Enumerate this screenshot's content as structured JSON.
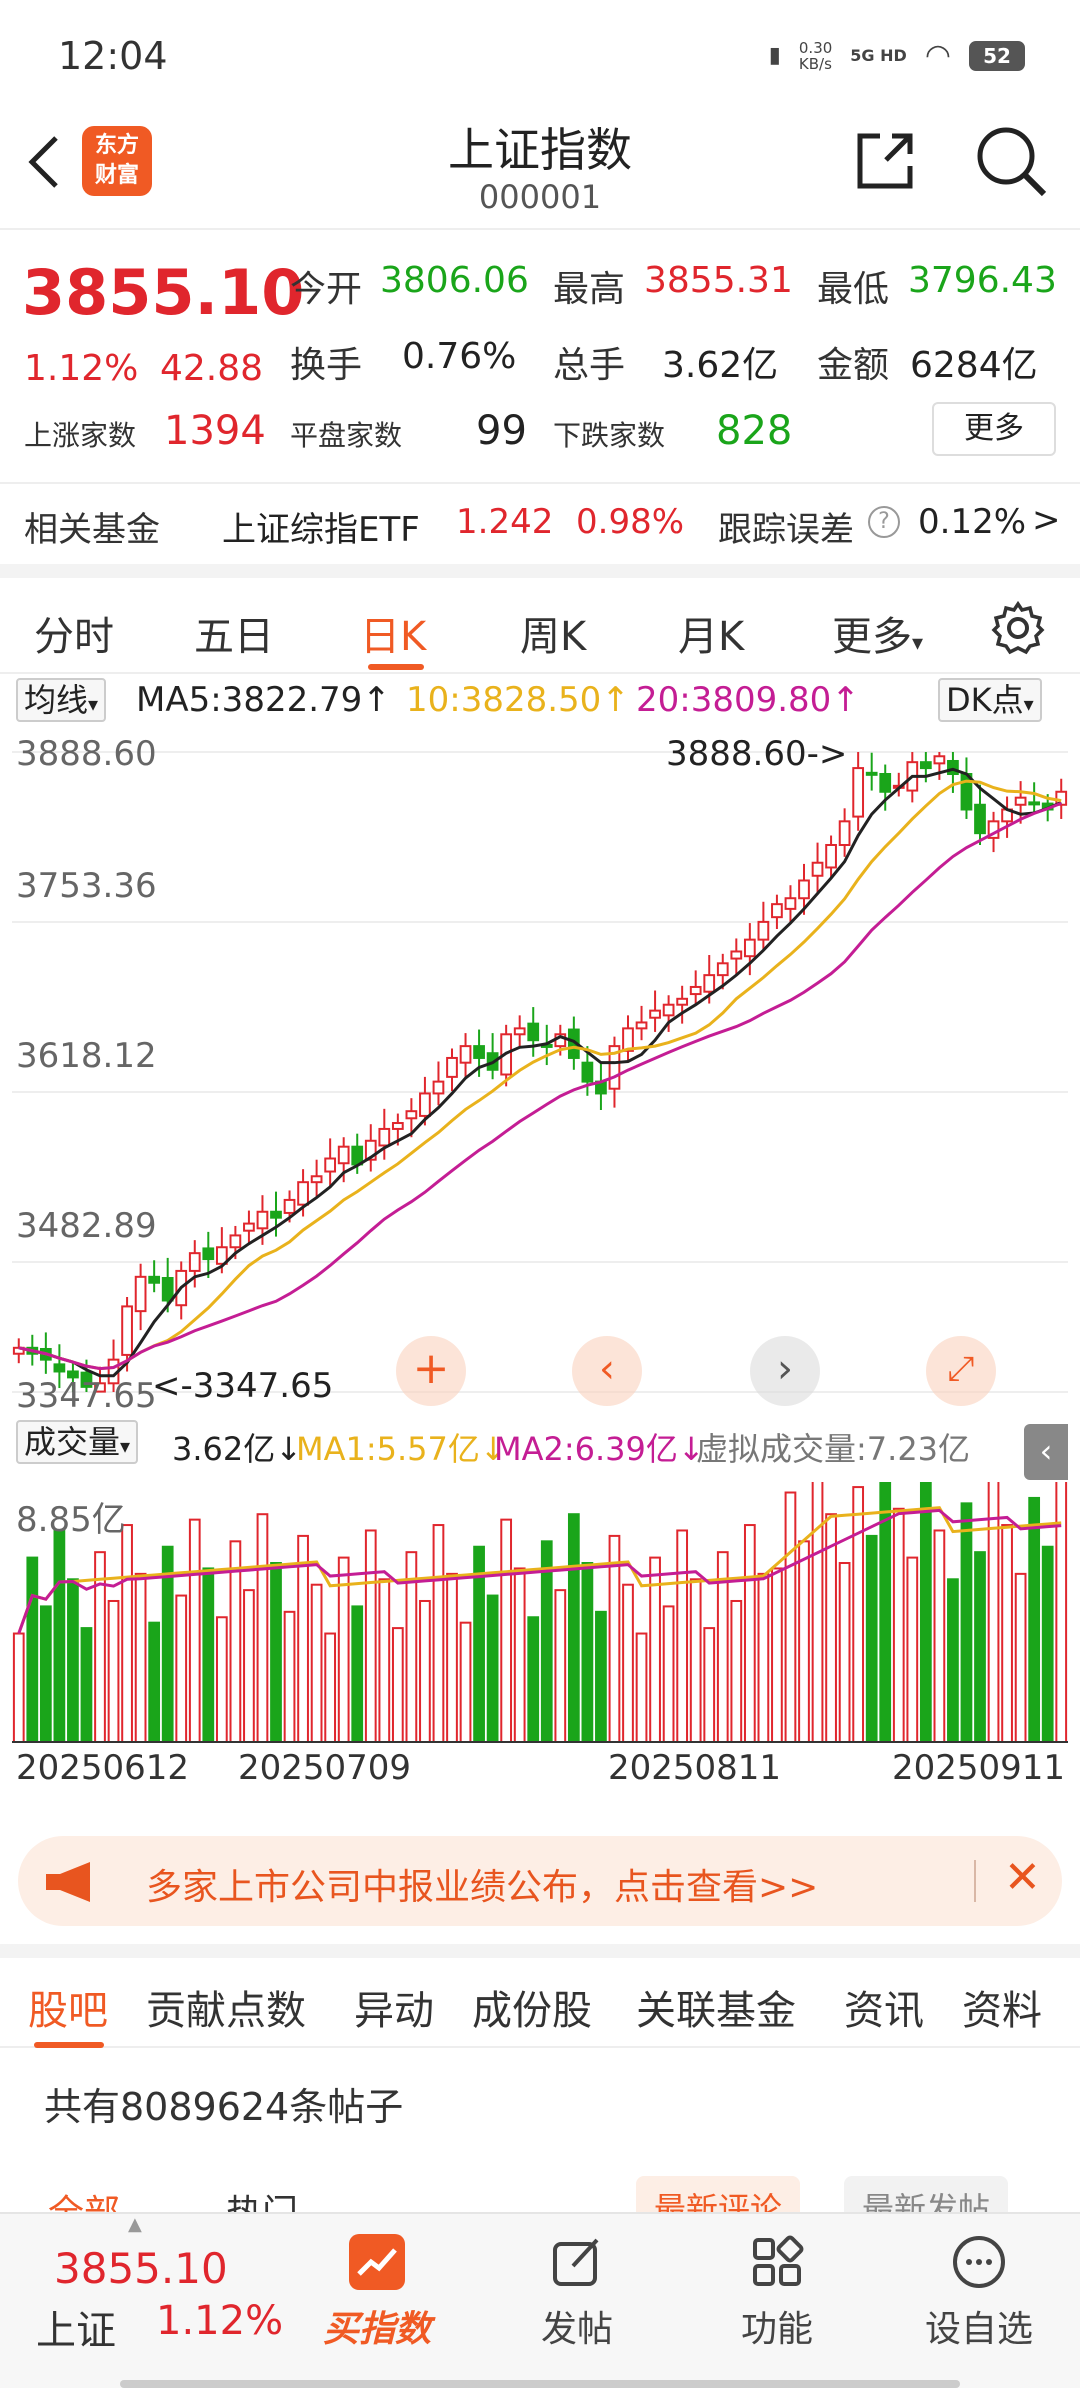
{
  "status": {
    "time": "12:04",
    "net_speed": "0.30\nKB/s",
    "net_type": "5G HD",
    "battery": "52"
  },
  "header": {
    "logo_text": "东方\n财富",
    "title": "上证指数",
    "code": "000001"
  },
  "quote": {
    "price": "3855.10",
    "change_pct": "1.12%",
    "change": "42.88",
    "open_label": "今开",
    "open": "3806.06",
    "high_label": "最高",
    "high": "3855.31",
    "low_label": "最低",
    "low": "3796.43",
    "turnover_label": "换手",
    "turnover": "0.76%",
    "volume_label": "总手",
    "volume": "3.62亿",
    "amount_label": "金额",
    "amount": "6284亿",
    "up_label": "上涨家数",
    "up": "1394",
    "flat_label": "平盘家数",
    "flat": "99",
    "down_label": "下跌家数",
    "down": "828",
    "more": "更多"
  },
  "fund": {
    "label": "相关基金",
    "name": "上证综指ETF",
    "price": "1.242",
    "pct": "0.98%",
    "err_label": "跟踪误差",
    "err": "0.12%",
    "arrow": ">"
  },
  "period_tabs": [
    "分时",
    "五日",
    "日K",
    "周K",
    "月K",
    "更多"
  ],
  "chart": {
    "ma_selector": "均线",
    "ma5": "MA5:3822.79↑",
    "ma10": "10:3828.50↑",
    "ma20": "20:3809.80↑",
    "dk": "DK点",
    "price_ticks": [
      "3888.60",
      "3753.36",
      "3618.12",
      "3482.89",
      "3347.65"
    ],
    "high_marker": "3888.60->",
    "low_marker": "<-3347.65",
    "vol_selector": "成交量",
    "vol_now": "3.62亿↓",
    "vol_ma1": "MA1:5.57亿↓",
    "vol_ma2": "MA2:6.39亿↓",
    "vol_virtual": "虚拟成交量:7.23亿",
    "vol_tick": "8.85亿",
    "dates": [
      "20250612",
      "20250709",
      "20250811",
      "20250911"
    ]
  },
  "chart_data": {
    "type": "candlestick",
    "ylim": [
      3347.65,
      3888.6
    ],
    "closes": [
      3385,
      3380,
      3375,
      3365,
      3360,
      3352,
      3355,
      3375,
      3420,
      3445,
      3440,
      3425,
      3450,
      3465,
      3460,
      3470,
      3480,
      3490,
      3500,
      3495,
      3510,
      3525,
      3530,
      3545,
      3555,
      3540,
      3560,
      3570,
      3575,
      3585,
      3600,
      3610,
      3630,
      3640,
      3630,
      3620,
      3650,
      3655,
      3645,
      3640,
      3650,
      3630,
      3610,
      3600,
      3640,
      3655,
      3660,
      3670,
      3675,
      3680,
      3690,
      3700,
      3710,
      3720,
      3730,
      3745,
      3760,
      3765,
      3780,
      3795,
      3810,
      3830,
      3875,
      3870,
      3855,
      3860,
      3880,
      3875,
      3885,
      3870,
      3840,
      3820,
      3830,
      3840,
      3850,
      3845,
      3840,
      3855
    ],
    "volume_ylim": [
      0,
      8.85
    ]
  },
  "banner": {
    "text": "多家上市公司中报业绩公布，点击查看>>"
  },
  "sub_tabs": [
    "股吧",
    "贡献点数",
    "异动",
    "成份股",
    "关联基金",
    "资讯",
    "资料"
  ],
  "posts": {
    "count_text": "共有8089624条帖子",
    "tab_all": "全部",
    "tab_hot": "热门",
    "sort_new_reply": "最新评论",
    "sort_new_post": "最新发帖"
  },
  "bottom_nav": {
    "index_price": "3855.10",
    "index_name": "上证",
    "index_pct": "1.12%",
    "items": [
      "买指数",
      "发帖",
      "功能",
      "设自选"
    ]
  }
}
